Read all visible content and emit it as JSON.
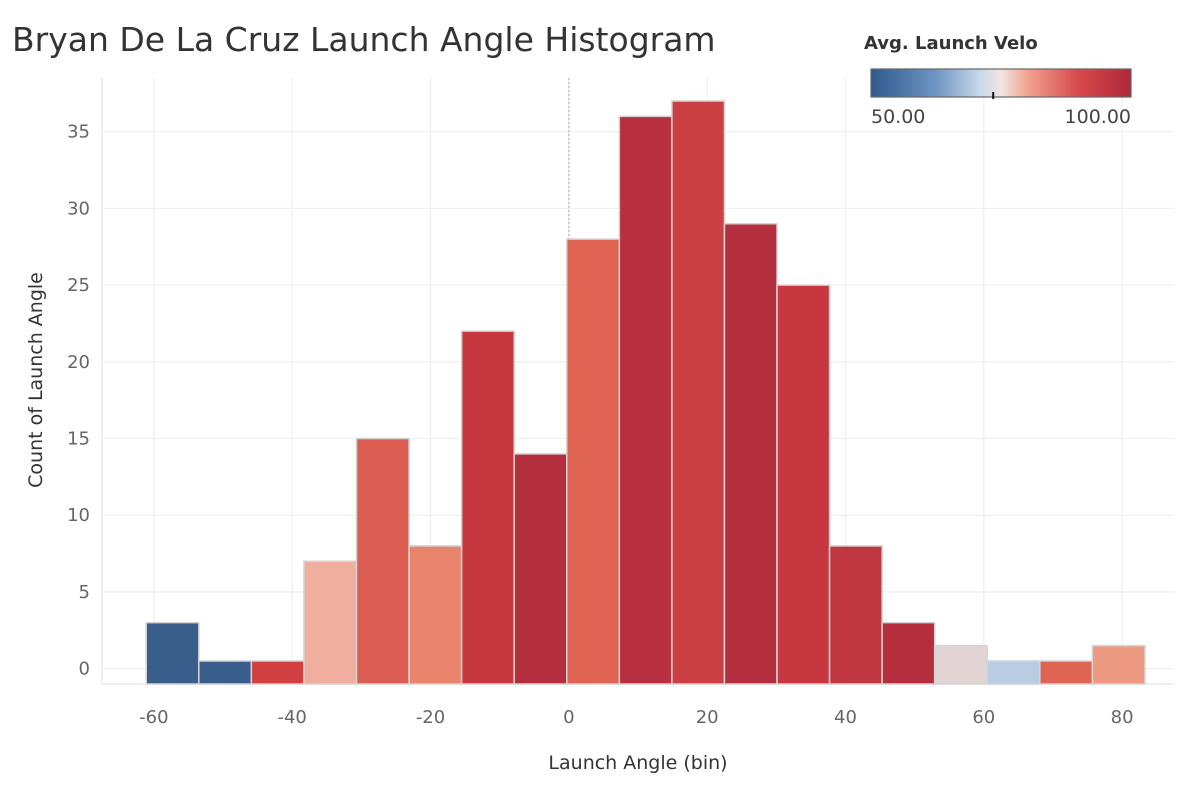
{
  "chart_data": {
    "type": "bar",
    "title": "Bryan De La Cruz Launch Angle Histogram",
    "xlabel": "Launch Angle (bin)",
    "ylabel": "Count of Launch Angle",
    "bin_width": 7.6,
    "xlim": [
      -67.5,
      87.5
    ],
    "ylim": [
      -1,
      38.5
    ],
    "x_ticks": [
      -60,
      -40,
      -20,
      0,
      20,
      40,
      60,
      80
    ],
    "y_ticks": [
      0,
      5,
      10,
      15,
      20,
      25,
      30,
      35
    ],
    "reference_line_x": 0,
    "grid": true,
    "bars": [
      {
        "start": -61.1,
        "count": 3,
        "color": "#3a5e8c"
      },
      {
        "start": -53.5,
        "count": 0.5,
        "color": "#3a5e8c"
      },
      {
        "start": -45.9,
        "count": 0.5,
        "color": "#d04040"
      },
      {
        "start": -38.3,
        "count": 7,
        "color": "#f0ae9e"
      },
      {
        "start": -30.7,
        "count": 15,
        "color": "#db5c50"
      },
      {
        "start": -23.1,
        "count": 8,
        "color": "#e8836c"
      },
      {
        "start": -15.5,
        "count": 22,
        "color": "#c7373f"
      },
      {
        "start": -7.9,
        "count": 14,
        "color": "#b42f3e"
      },
      {
        "start": -0.3,
        "count": 28,
        "color": "#e06453"
      },
      {
        "start": 7.3,
        "count": 36,
        "color": "#b8303f"
      },
      {
        "start": 14.9,
        "count": 37,
        "color": "#ca4043"
      },
      {
        "start": 22.5,
        "count": 29,
        "color": "#b42f3e"
      },
      {
        "start": 30.1,
        "count": 25,
        "color": "#c7373f"
      },
      {
        "start": 37.7,
        "count": 8,
        "color": "#c03741"
      },
      {
        "start": 45.3,
        "count": 3,
        "color": "#b42e3d"
      },
      {
        "start": 52.9,
        "count": 1.5,
        "color": "#e2d4d4"
      },
      {
        "start": 60.5,
        "count": 0.5,
        "color": "#b8cde3"
      },
      {
        "start": 68.1,
        "count": 0.5,
        "color": "#e06453"
      },
      {
        "start": 75.7,
        "count": 1.5,
        "color": "#ee9a82"
      }
    ],
    "legend": {
      "title": "Avg. Launch Velo",
      "min_label": "50.00",
      "max_label": "100.00",
      "placement": "top-right",
      "marker_fraction": 0.47,
      "stops": [
        {
          "offset": 0,
          "color": "#2f5a8e"
        },
        {
          "offset": 0.25,
          "color": "#6e95c2"
        },
        {
          "offset": 0.42,
          "color": "#c8d9ea"
        },
        {
          "offset": 0.5,
          "color": "#f1e5e1"
        },
        {
          "offset": 0.6,
          "color": "#f1a490"
        },
        {
          "offset": 0.8,
          "color": "#d6484b"
        },
        {
          "offset": 1,
          "color": "#b0283a"
        }
      ]
    }
  }
}
